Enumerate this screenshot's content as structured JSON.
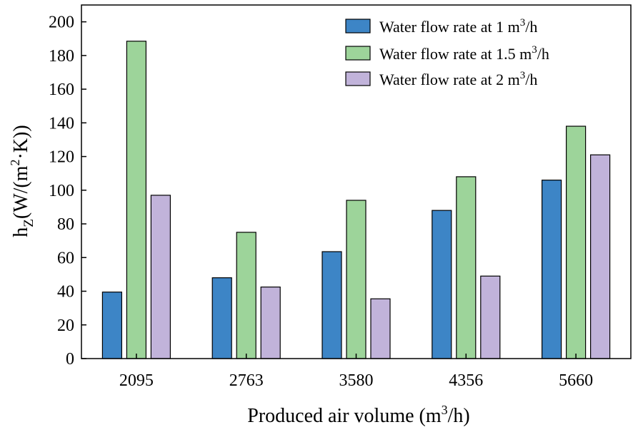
{
  "chart_data": {
    "type": "bar",
    "title": "",
    "xlabel": "Produced air volume (m³/h)",
    "xlabel_parts": {
      "pre": "Produced air volume (m",
      "sup": "3",
      "post": "/h)"
    },
    "ylabel": "hZ(W/(m²·K))",
    "ylabel_parts": {
      "base": "h",
      "sub": "Z",
      "mid": "(W/(m",
      "sup": "2",
      "post": "·K))"
    },
    "ylim": [
      0,
      210
    ],
    "yticks": [
      0,
      20,
      40,
      60,
      80,
      100,
      120,
      140,
      160,
      180,
      200
    ],
    "categories": [
      "2095",
      "2763",
      "3580",
      "4356",
      "5660"
    ],
    "series": [
      {
        "name": "Water flow rate at 1 m³/h",
        "label_pre": "Water flow rate at 1 m",
        "label_sup": "3",
        "label_post": "/h",
        "color": "#3d85c6",
        "values": [
          39.5,
          48,
          63.5,
          88,
          106
        ]
      },
      {
        "name": "Water flow rate at 1.5 m³/h",
        "label_pre": "Water flow rate at 1.5 m",
        "label_sup": "3",
        "label_post": "/h",
        "color": "#9dd49a",
        "values": [
          188.5,
          75,
          94,
          108,
          138
        ]
      },
      {
        "name": "Water flow rate at 2 m³/h",
        "label_pre": "Water flow rate at 2 m",
        "label_sup": "3",
        "label_post": "/h",
        "color": "#c1b3da",
        "values": [
          97,
          42.5,
          35.5,
          49,
          121
        ]
      }
    ],
    "legend_position": "top-right",
    "grid": false
  }
}
